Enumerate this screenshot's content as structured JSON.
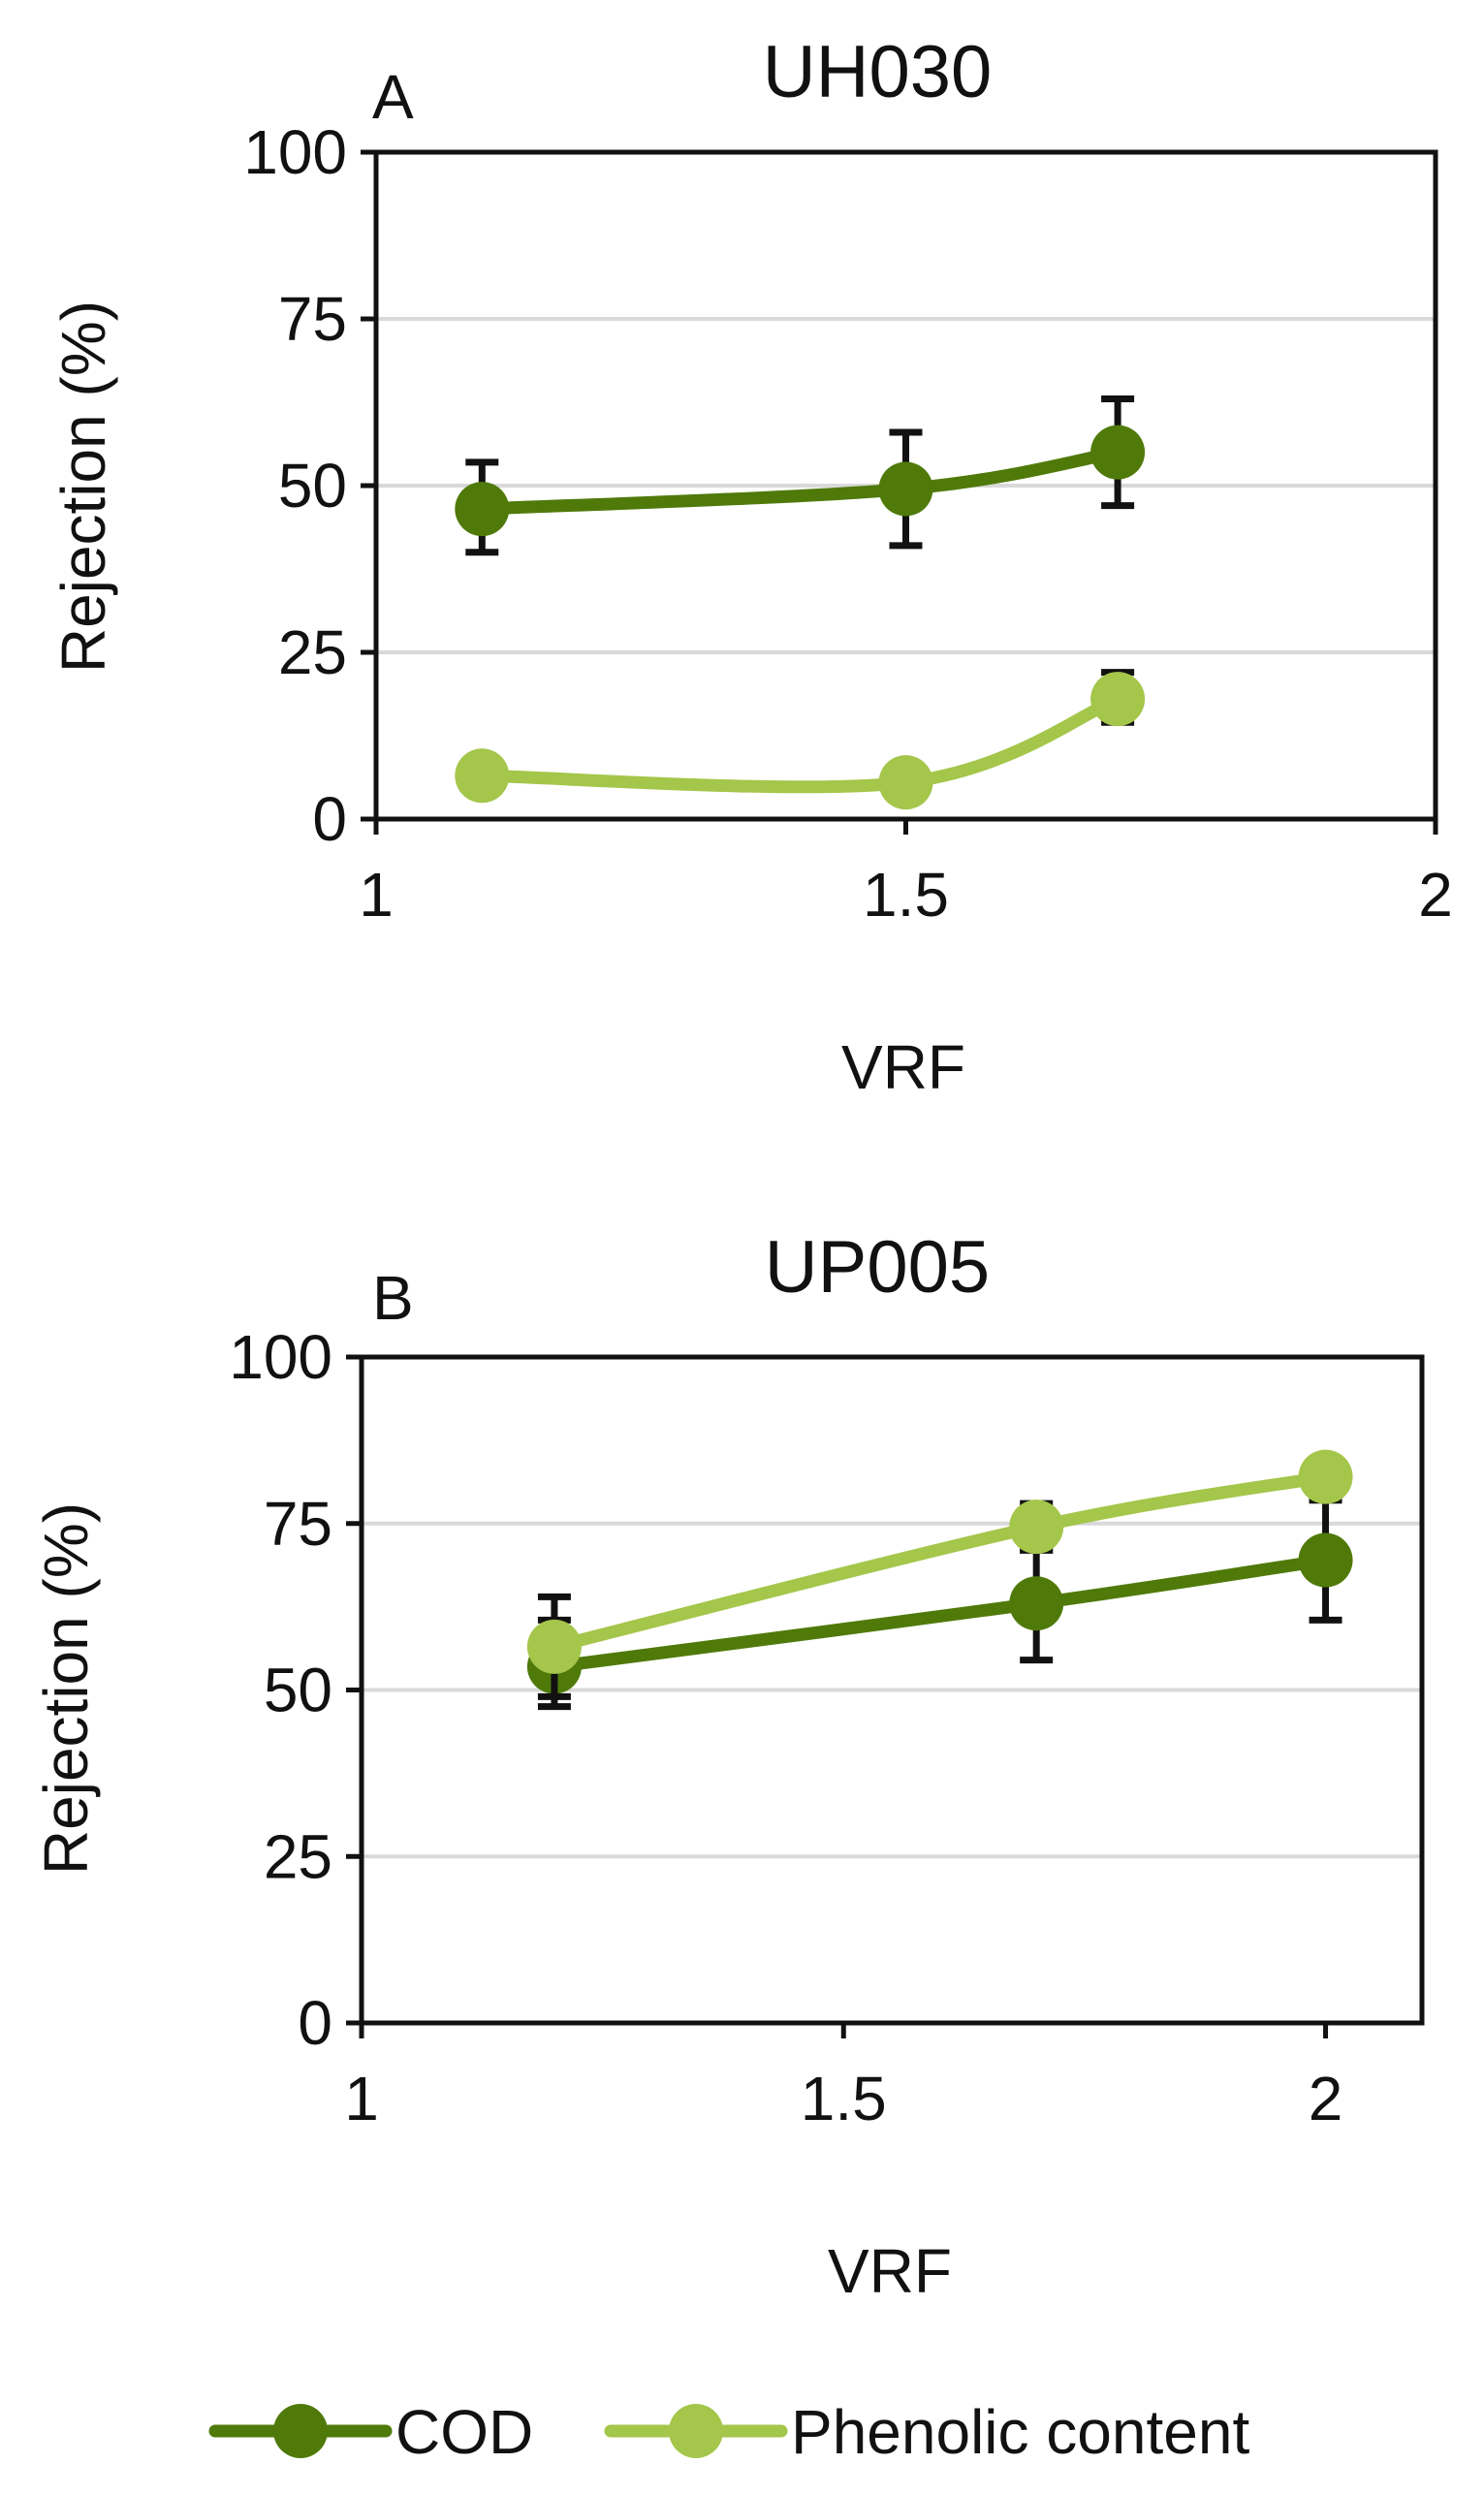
{
  "chart_data": [
    {
      "type": "line",
      "panel_label": "A",
      "title": "UH030",
      "xlabel": "VRF",
      "ylabel": "Rejection (%)",
      "xlim": [
        1,
        2
      ],
      "ylim": [
        0,
        100
      ],
      "xticks": [
        "1",
        "1.5",
        "2"
      ],
      "yticks": [
        "0",
        "25",
        "50",
        "75",
        "100"
      ],
      "grid": true,
      "series": [
        {
          "name": "COD",
          "color": "#4f7a0a",
          "x": [
            1.1,
            1.5,
            1.7
          ],
          "values": [
            46.5,
            49.5,
            55
          ],
          "err_low": [
            40,
            41,
            47
          ],
          "err_high": [
            53.5,
            58,
            63
          ]
        },
        {
          "name": "Phenolic content",
          "color": "#a4c64a",
          "x": [
            1.1,
            1.5,
            1.7
          ],
          "values": [
            6.5,
            5.5,
            18
          ],
          "err_low": [
            6.5,
            5.5,
            14.5
          ],
          "err_high": [
            6.5,
            5.5,
            22
          ]
        }
      ]
    },
    {
      "type": "line",
      "panel_label": "B",
      "title": "UP005",
      "xlabel": "VRF",
      "ylabel": "Rejection (%)",
      "xlim": [
        1,
        2.1
      ],
      "ylim": [
        0,
        100
      ],
      "xticks": [
        "1",
        "1.5",
        "2"
      ],
      "yticks": [
        "0",
        "25",
        "50",
        "75",
        "100"
      ],
      "grid": true,
      "series": [
        {
          "name": "COD",
          "color": "#4f7a0a",
          "x": [
            1.2,
            1.7,
            2.0
          ],
          "values": [
            53.5,
            63,
            69.5
          ],
          "err_low": [
            47.5,
            54.5,
            60.5
          ],
          "err_high": [
            60.5,
            71,
            79
          ]
        },
        {
          "name": "Phenolic content",
          "color": "#a4c64a",
          "x": [
            1.2,
            1.7,
            2.0
          ],
          "values": [
            56.5,
            74.5,
            82
          ],
          "err_low": [
            49,
            71,
            78.5
          ],
          "err_high": [
            64,
            78,
            84.5
          ]
        }
      ]
    }
  ],
  "legend": {
    "position": "bottom",
    "items": [
      {
        "name": "COD",
        "color": "#4f7a0a"
      },
      {
        "name": "Phenolic content",
        "color": "#a4c64a"
      }
    ]
  }
}
